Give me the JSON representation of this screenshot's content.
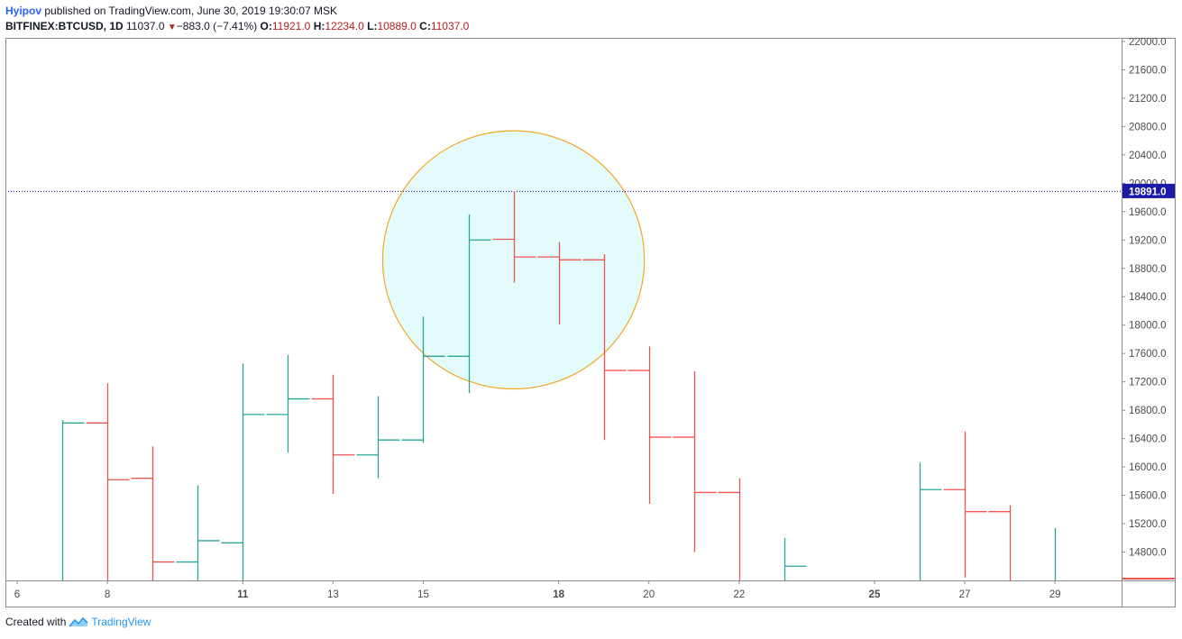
{
  "header": {
    "author": "Hyipov",
    "published": "published on TradingView.com, June 30, 2019 19:30:07 MSK",
    "symbol": "BITFINEX:BTCUSD, 1D",
    "last": "11037.0",
    "change": "−883.0 (−7.41%)",
    "o_label": "O:",
    "o_value": "11921.0",
    "h_label": "H:",
    "h_value": "12234.0",
    "l_label": "L:",
    "l_value": "10889.0",
    "c_label": "C:",
    "c_value": "11037.0"
  },
  "footer": {
    "created_with": "Created with",
    "brand": "TradingView"
  },
  "colors": {
    "up": "#26a69a",
    "down": "#ef5350",
    "price_line": "#1a1aa6",
    "price_badge": "#1a1aa6",
    "circle_fill": "#e3fcfb",
    "circle_stroke": "#f5a623"
  },
  "chart_data": {
    "type": "ohlc",
    "y_ticks": [
      "14800.0",
      "15200.0",
      "15600.0",
      "16000.0",
      "16400.0",
      "16800.0",
      "17200.0",
      "17600.0",
      "18000.0",
      "18400.0",
      "18800.0",
      "19200.0",
      "19600.0",
      "20000.0",
      "20400.0",
      "20800.0",
      "21200.0",
      "21600.0",
      "22000.0"
    ],
    "ylim": [
      14400,
      22050
    ],
    "x_ticks": [
      {
        "label": "6",
        "day": 6,
        "bold": false
      },
      {
        "label": "8",
        "day": 8,
        "bold": false
      },
      {
        "label": "11",
        "day": 11,
        "bold": true
      },
      {
        "label": "13",
        "day": 13,
        "bold": false
      },
      {
        "label": "15",
        "day": 15,
        "bold": false
      },
      {
        "label": "18",
        "day": 18,
        "bold": true
      },
      {
        "label": "20",
        "day": 20,
        "bold": false
      },
      {
        "label": "22",
        "day": 22,
        "bold": false
      },
      {
        "label": "25",
        "day": 25,
        "bold": true
      },
      {
        "label": "27",
        "day": 27,
        "bold": false
      },
      {
        "label": "29",
        "day": 29,
        "bold": false
      }
    ],
    "bars": [
      {
        "day": 7,
        "open": 14200,
        "high": 16660,
        "low": 14200,
        "close": 16620
      },
      {
        "day": 8,
        "open": 16620,
        "high": 17180,
        "low": 14200,
        "close": 15820
      },
      {
        "day": 9,
        "open": 15840,
        "high": 16290,
        "low": 14200,
        "close": 14660
      },
      {
        "day": 10,
        "open": 14660,
        "high": 15740,
        "low": 14200,
        "close": 14960
      },
      {
        "day": 11,
        "open": 14930,
        "high": 17460,
        "low": 14200,
        "close": 16740
      },
      {
        "day": 12,
        "open": 16740,
        "high": 17580,
        "low": 16200,
        "close": 16960
      },
      {
        "day": 13,
        "open": 16960,
        "high": 17300,
        "low": 15620,
        "close": 16170
      },
      {
        "day": 14,
        "open": 16170,
        "high": 17000,
        "low": 15840,
        "close": 16380
      },
      {
        "day": 15,
        "open": 16380,
        "high": 18120,
        "low": 16340,
        "close": 17560
      },
      {
        "day": 16,
        "open": 17560,
        "high": 19560,
        "low": 17040,
        "close": 19200
      },
      {
        "day": 17,
        "open": 19210,
        "high": 19891,
        "low": 18600,
        "close": 18960
      },
      {
        "day": 18,
        "open": 18960,
        "high": 19170,
        "low": 18010,
        "close": 18920
      },
      {
        "day": 19,
        "open": 18920,
        "high": 19000,
        "low": 16380,
        "close": 17360
      },
      {
        "day": 20,
        "open": 17360,
        "high": 17700,
        "low": 15480,
        "close": 16420
      },
      {
        "day": 21,
        "open": 16420,
        "high": 17350,
        "low": 14800,
        "close": 15640
      },
      {
        "day": 22,
        "open": 15640,
        "high": 15840,
        "low": 14200,
        "close": 14200
      },
      {
        "day": 23,
        "open": 14200,
        "high": 15000,
        "low": 14200,
        "close": 14600
      },
      {
        "day": 26,
        "open": 14200,
        "high": 16060,
        "low": 14200,
        "close": 15680
      },
      {
        "day": 27,
        "open": 15680,
        "high": 16500,
        "low": 14440,
        "close": 15370
      },
      {
        "day": 28,
        "open": 15370,
        "high": 15460,
        "low": 14200,
        "close": 14200
      },
      {
        "day": 29,
        "open": 14200,
        "high": 15140,
        "low": 14200,
        "close": 14300
      }
    ],
    "price_line": {
      "value": 19891.0,
      "label": "19891.0"
    },
    "circle": {
      "center_day": 17,
      "center_price": 18920,
      "radius_days": 2.9,
      "radius_price": 1820
    }
  }
}
